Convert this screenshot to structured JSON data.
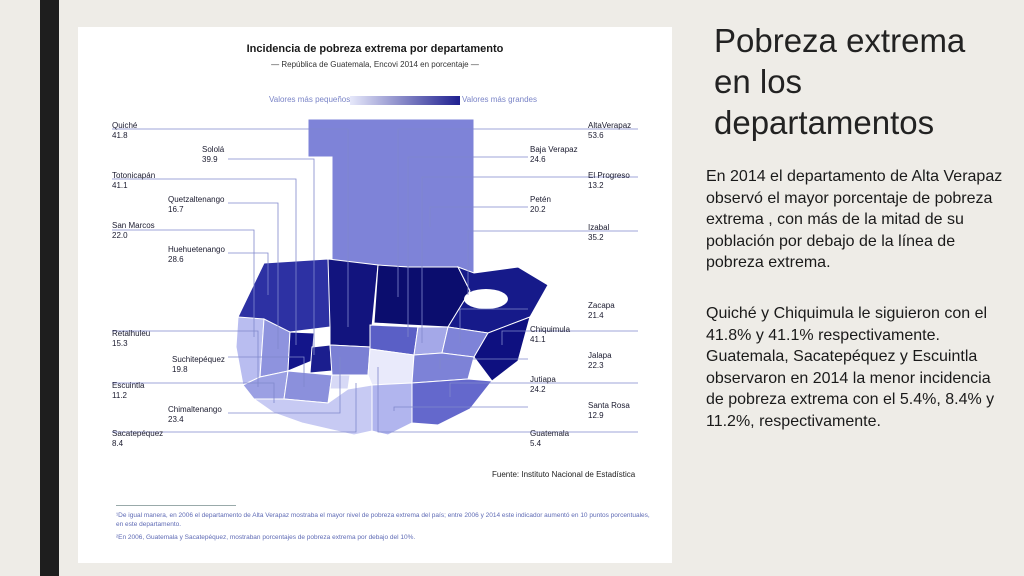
{
  "slide": {
    "title": "Pobreza extrema  en  los departamentos",
    "paragraph1": "En 2014 el departamento de Alta Verapaz observó el mayor porcentaje de pobreza extrema , con más de la mitad de su población por debajo de la línea de pobreza extrema.",
    "paragraph2": "Quiché y Chiquimula le siguieron con el 41.8% y 41.1% respectivamente. Guatemala, Sacatepéquez y Escuintla observaron en 2014 la menor incidencia de pobreza extrema con el 5.4%, 8.4% y 11.2%, respectivamente."
  },
  "figure": {
    "title": "Incidencia de pobreza extrema por departamento",
    "subtitle": "— República de Guatemala, Encovi 2014 en porcentaje —",
    "scale_low": "Valores más pequeños",
    "scale_high": "Valores más grandes",
    "source": "Fuente: Instituto Nacional de Estadística",
    "note1": "¹De igual manera, en 2006 el departamento de Alta Verapaz mostraba el mayor nivel de pobreza extrema del país; entre 2006 y 2014 este indicador aumentó en 10 puntos porcentuales, en este departamento.",
    "note2": "²En 2006, Guatemala y Sacatepéquez, mostraban porcentajes de pobreza extrema por debajo del 10%.",
    "colors": {
      "low": "#e6e8fa",
      "high": "#1f2090"
    }
  },
  "departments": [
    {
      "name": "Quiché",
      "value": "41.8"
    },
    {
      "name": "Sololá",
      "value": "39.9"
    },
    {
      "name": "Totonicapán",
      "value": "41.1"
    },
    {
      "name": "Quetzaltenango",
      "value": "16.7"
    },
    {
      "name": "San Marcos",
      "value": "22.0"
    },
    {
      "name": "Huehuetenango",
      "value": "28.6"
    },
    {
      "name": "Retalhuleu",
      "value": "15.3"
    },
    {
      "name": "Suchitepéquez",
      "value": "19.8"
    },
    {
      "name": "Escuintla",
      "value": "11.2"
    },
    {
      "name": "Chimaltenango",
      "value": "23.4"
    },
    {
      "name": "Sacatepéquez",
      "value": "8.4"
    },
    {
      "name": "AltaVerapaz",
      "value": "53.6"
    },
    {
      "name": "Baja Verapaz",
      "value": "24.6"
    },
    {
      "name": "El Progreso",
      "value": "13.2"
    },
    {
      "name": "Petén",
      "value": "20.2"
    },
    {
      "name": "Izabal",
      "value": "35.2"
    },
    {
      "name": "Zacapa",
      "value": "21.4"
    },
    {
      "name": "Chiquimula",
      "value": "41.1"
    },
    {
      "name": "Jalapa",
      "value": "22.3"
    },
    {
      "name": "Jutiapa",
      "value": "24.2"
    },
    {
      "name": "Santa Rosa",
      "value": "12.9"
    },
    {
      "name": "Guatemala",
      "value": "5.4"
    }
  ]
}
